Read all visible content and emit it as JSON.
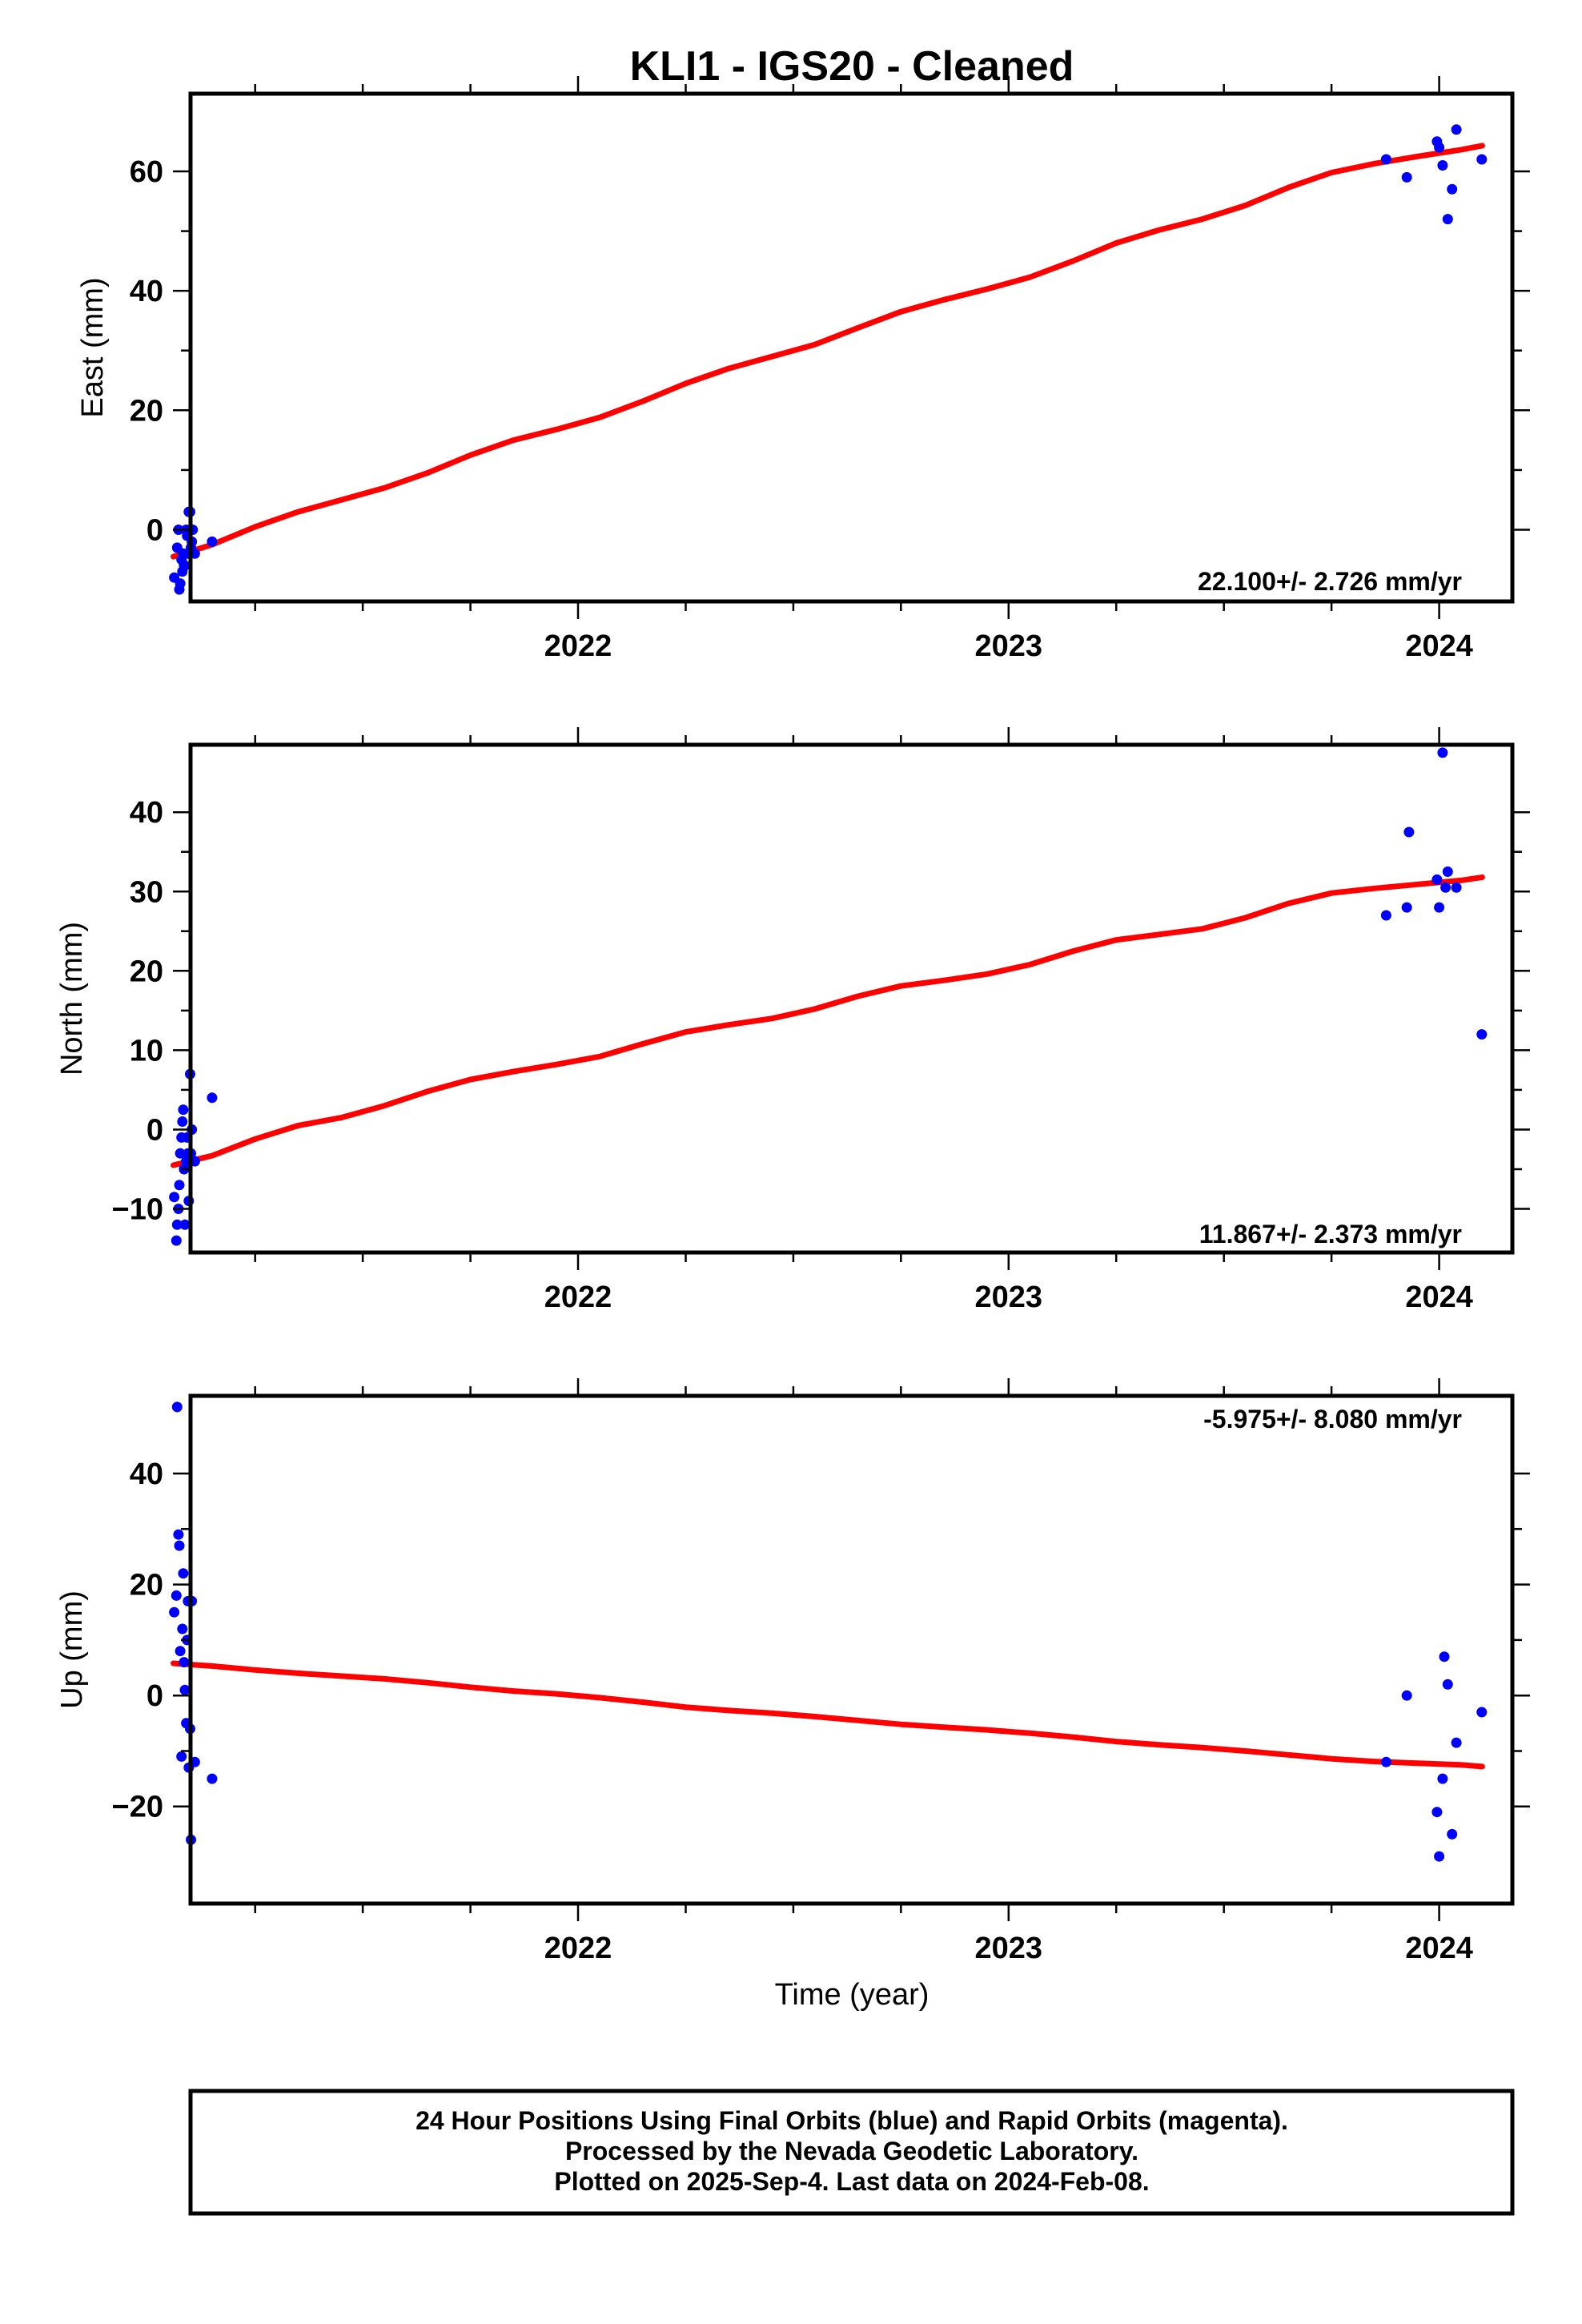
{
  "title": "KLI1  - IGS20 - Cleaned",
  "colors": {
    "final_orbit_points": "#0000ff",
    "trend_line": "#ff0000",
    "frame": "#000000",
    "background": "#ffffff"
  },
  "chart_data": [
    {
      "type": "scatter",
      "ylabel": "East (mm)",
      "ylim": [
        -12,
        73
      ],
      "xlim": [
        2021.1,
        2024.17
      ],
      "x_ticks": [
        2022,
        2023,
        2024
      ],
      "x_tick_labels": [
        "2022",
        "2023",
        "2024"
      ],
      "y_ticks": [
        0,
        20,
        40,
        60
      ],
      "y_tick_labels": [
        "0",
        "20",
        "40",
        "60"
      ],
      "rate_label": "22.100+/- 2.726 mm/yr",
      "rate_position": "bottom-right",
      "grid": false,
      "series": [
        {
          "kind": "points",
          "x": [
            2021.062,
            2021.069,
            2021.072,
            2021.074,
            2021.076,
            2021.079,
            2021.081,
            2021.083,
            2021.085,
            2021.087,
            2021.09,
            2021.092,
            2021.094,
            2021.096,
            2021.099,
            2021.101,
            2021.103,
            2021.105,
            2021.11,
            2021.15,
            2023.877,
            2023.925,
            2023.995,
            2024.0,
            2024.008,
            2024.02,
            2024.03,
            2024.04,
            2024.099
          ],
          "y": [
            -8,
            -3,
            0,
            -10,
            -9,
            -5,
            -7,
            -4,
            -6,
            -6,
            0,
            -1,
            -4,
            3,
            3,
            -3,
            -2,
            0,
            -4,
            -2,
            62,
            59,
            65,
            64,
            61,
            52,
            57,
            67,
            62
          ]
        },
        {
          "kind": "line",
          "x": [
            2021.06,
            2021.15,
            2021.25,
            2021.35,
            2021.45,
            2021.55,
            2021.65,
            2021.75,
            2021.85,
            2021.95,
            2022.05,
            2022.15,
            2022.25,
            2022.35,
            2022.45,
            2022.55,
            2022.65,
            2022.75,
            2022.85,
            2022.95,
            2023.05,
            2023.15,
            2023.25,
            2023.35,
            2023.45,
            2023.55,
            2023.65,
            2023.75,
            2023.85,
            2023.95,
            2024.05,
            2024.1
          ],
          "y": [
            -4.5,
            -2.5,
            0.5,
            3.0,
            5.0,
            7.0,
            9.5,
            12.5,
            15.0,
            16.8,
            18.8,
            21.5,
            24.5,
            27.0,
            29.0,
            31.0,
            33.8,
            36.5,
            38.5,
            40.3,
            42.3,
            45.0,
            48.0,
            50.2,
            52.0,
            54.3,
            57.3,
            59.8,
            61.3,
            62.5,
            63.6,
            64.3
          ]
        }
      ]
    },
    {
      "type": "scatter",
      "ylabel": "North (mm)",
      "ylim": [
        -15.5,
        48.5
      ],
      "xlim": [
        2021.1,
        2024.17
      ],
      "x_ticks": [
        2022,
        2023,
        2024
      ],
      "x_tick_labels": [
        "2022",
        "2023",
        "2024"
      ],
      "y_ticks": [
        -10,
        0,
        10,
        20,
        30,
        40
      ],
      "y_tick_labels": [
        "−10",
        "0",
        "10",
        "20",
        "30",
        "40"
      ],
      "rate_label": "11.867+/- 2.373 mm/yr",
      "rate_position": "bottom-right",
      "grid": false,
      "series": [
        {
          "kind": "points",
          "x": [
            2021.062,
            2021.067,
            2021.069,
            2021.072,
            2021.074,
            2021.076,
            2021.079,
            2021.081,
            2021.083,
            2021.085,
            2021.087,
            2021.09,
            2021.092,
            2021.094,
            2021.096,
            2021.099,
            2021.101,
            2021.103,
            2021.11,
            2021.15,
            2023.877,
            2023.925,
            2023.93,
            2023.995,
            2024.0,
            2024.008,
            2024.015,
            2024.02,
            2024.04,
            2024.099
          ],
          "y": [
            -8.5,
            -14,
            -12,
            -10,
            -7,
            -3,
            -1,
            1,
            2.5,
            -5,
            -12,
            -4,
            -1,
            -3,
            -9,
            7,
            -3,
            0,
            -4,
            4,
            27,
            28,
            37.5,
            31.5,
            28,
            47.5,
            30.5,
            32.5,
            30.5,
            12
          ]
        },
        {
          "kind": "line",
          "x": [
            2021.06,
            2021.15,
            2021.25,
            2021.35,
            2021.45,
            2021.55,
            2021.65,
            2021.75,
            2021.85,
            2021.95,
            2022.05,
            2022.15,
            2022.25,
            2022.35,
            2022.45,
            2022.55,
            2022.65,
            2022.75,
            2022.85,
            2022.95,
            2023.05,
            2023.15,
            2023.25,
            2023.35,
            2023.45,
            2023.55,
            2023.65,
            2023.75,
            2023.85,
            2023.95,
            2024.05,
            2024.1
          ],
          "y": [
            -4.5,
            -3.3,
            -1.2,
            0.5,
            1.5,
            3.0,
            4.8,
            6.3,
            7.3,
            8.2,
            9.2,
            10.8,
            12.3,
            13.2,
            14.0,
            15.2,
            16.8,
            18.1,
            18.8,
            19.6,
            20.8,
            22.5,
            23.9,
            24.6,
            25.3,
            26.7,
            28.5,
            29.8,
            30.4,
            30.9,
            31.4,
            31.8
          ]
        }
      ]
    },
    {
      "type": "scatter",
      "ylabel": "Up (mm)",
      "xlabel": "Time (year)",
      "ylim": [
        -37.5,
        54
      ],
      "xlim": [
        2021.1,
        2024.17
      ],
      "x_ticks": [
        2022,
        2023,
        2024
      ],
      "x_tick_labels": [
        "2022",
        "2023",
        "2024"
      ],
      "y_ticks": [
        -20,
        0,
        20,
        40
      ],
      "y_tick_labels": [
        "−20",
        "0",
        "20",
        "40"
      ],
      "rate_label": "-5.975+/- 8.080 mm/yr",
      "rate_position": "top-right",
      "grid": false,
      "series": [
        {
          "kind": "points",
          "x": [
            2021.062,
            2021.067,
            2021.069,
            2021.072,
            2021.074,
            2021.076,
            2021.079,
            2021.081,
            2021.083,
            2021.085,
            2021.087,
            2021.09,
            2021.092,
            2021.094,
            2021.096,
            2021.099,
            2021.101,
            2021.103,
            2021.11,
            2021.15,
            2023.877,
            2023.925,
            2023.995,
            2024.0,
            2024.008,
            2024.012,
            2024.02,
            2024.03,
            2024.04,
            2024.099
          ],
          "y": [
            15,
            18,
            52,
            29,
            27,
            8,
            -11,
            12,
            22,
            6,
            1,
            -5,
            10,
            17,
            -13,
            -6,
            -26,
            17,
            -12,
            -15,
            -12,
            0,
            -21,
            -29,
            -15,
            7,
            2,
            -25,
            -8.5,
            -3
          ]
        },
        {
          "kind": "line",
          "x": [
            2021.06,
            2021.15,
            2021.25,
            2021.35,
            2021.45,
            2021.55,
            2021.65,
            2021.75,
            2021.85,
            2021.95,
            2022.05,
            2022.15,
            2022.25,
            2022.35,
            2022.45,
            2022.55,
            2022.65,
            2022.75,
            2022.85,
            2022.95,
            2023.05,
            2023.15,
            2023.25,
            2023.35,
            2023.45,
            2023.55,
            2023.65,
            2023.75,
            2023.85,
            2023.95,
            2024.05,
            2024.1
          ],
          "y": [
            5.8,
            5.3,
            4.6,
            4.0,
            3.5,
            3.0,
            2.3,
            1.5,
            0.8,
            0.3,
            -0.4,
            -1.2,
            -2.1,
            -2.7,
            -3.2,
            -3.8,
            -4.5,
            -5.2,
            -5.7,
            -6.2,
            -6.8,
            -7.5,
            -8.3,
            -8.9,
            -9.4,
            -10.0,
            -10.7,
            -11.4,
            -11.9,
            -12.2,
            -12.5,
            -12.8
          ]
        }
      ]
    }
  ],
  "footer": {
    "line1": "24 Hour Positions Using Final Orbits (blue) and Rapid Orbits (magenta).",
    "line2": "Processed by the Nevada Geodetic Laboratory.",
    "line3": "Plotted on 2025-Sep-4. Last data on 2024-Feb-08."
  }
}
